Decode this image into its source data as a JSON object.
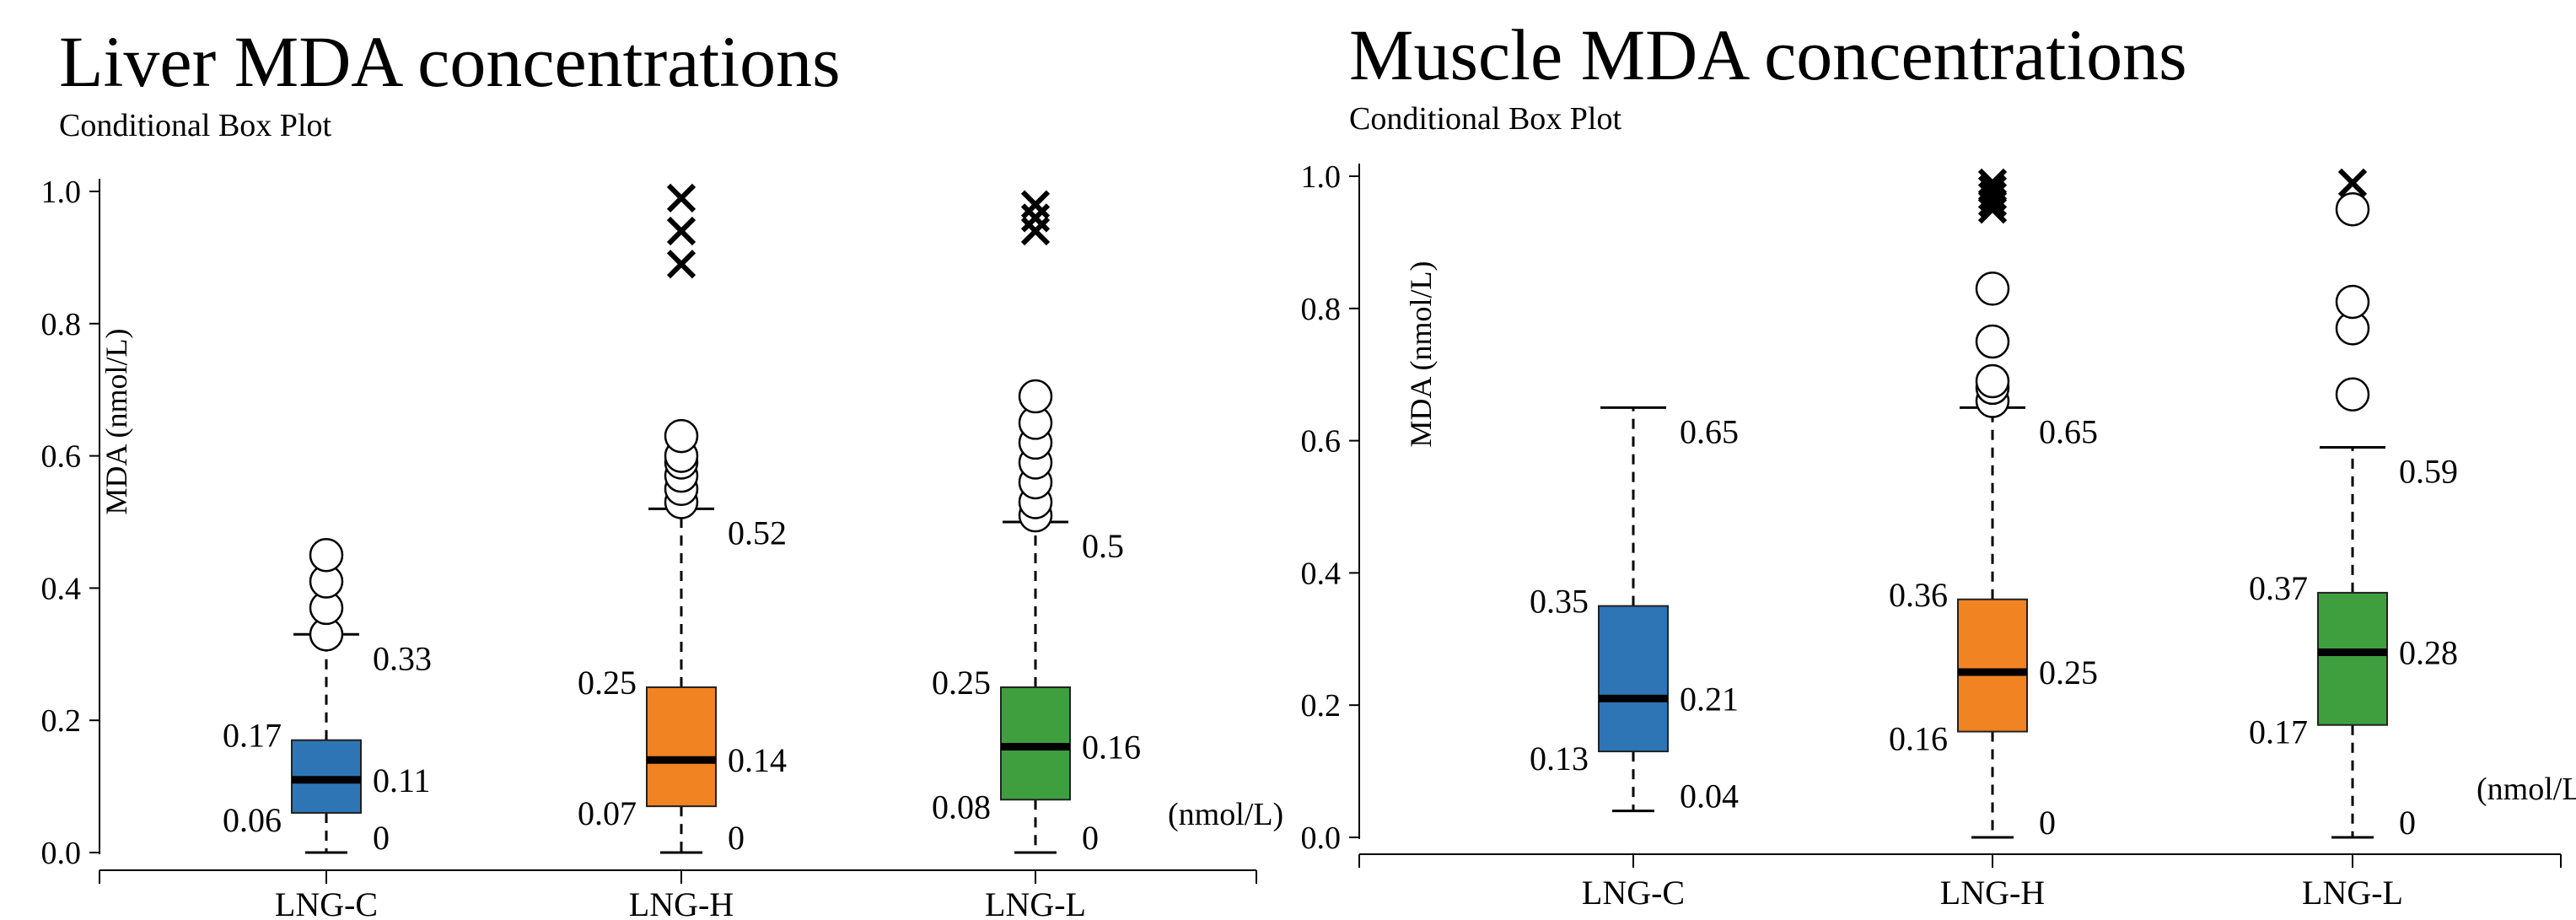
{
  "chart_data": [
    {
      "type": "boxplot",
      "title": "Liver MDA concentrations",
      "subtitle": "Conditional Box Plot",
      "ylabel": "MDA (nmol/L)",
      "unit_label": "(nmol/L)",
      "ylim": [
        0,
        1.0
      ],
      "yticks": [
        "0.0",
        "0.2",
        "0.4",
        "0.6",
        "0.8",
        "1.0"
      ],
      "categories": [
        "LNG-C",
        "LNG-H",
        "LNG-L"
      ],
      "boxes": [
        {
          "name": "LNG-C",
          "color": "#2e75b6",
          "whisker_low": 0,
          "q1": 0.06,
          "median": 0.11,
          "q3": 0.17,
          "whisker_high": 0.33,
          "labels": {
            "whisker_low": "0",
            "q1": "0.06",
            "median": "0.11",
            "q3": "0.17",
            "whisker_high": "0.33"
          },
          "outliers": [
            0.33,
            0.37,
            0.41,
            0.45
          ],
          "extremes": []
        },
        {
          "name": "LNG-H",
          "color": "#f28322",
          "whisker_low": 0,
          "q1": 0.07,
          "median": 0.14,
          "q3": 0.25,
          "whisker_high": 0.52,
          "labels": {
            "whisker_low": "0",
            "q1": "0.07",
            "median": "0.14",
            "q3": "0.25",
            "whisker_high": "0.52"
          },
          "outliers": [
            0.53,
            0.55,
            0.57,
            0.59,
            0.6,
            0.63
          ],
          "extremes": [
            0.89,
            0.94,
            0.99
          ]
        },
        {
          "name": "LNG-L",
          "color": "#3f9f3f",
          "whisker_low": 0,
          "q1": 0.08,
          "median": 0.16,
          "q3": 0.25,
          "whisker_high": 0.5,
          "labels": {
            "whisker_low": "0",
            "q1": "0.08",
            "median": "0.16",
            "q3": "0.25",
            "whisker_high": "0.5"
          },
          "outliers": [
            0.51,
            0.53,
            0.56,
            0.59,
            0.62,
            0.65,
            0.69
          ],
          "extremes": [
            0.94,
            0.96,
            0.98
          ]
        }
      ]
    },
    {
      "type": "boxplot",
      "title": "Muscle MDA concentrations",
      "subtitle": "Conditional Box Plot",
      "ylabel": "MDA (nmol/L)",
      "unit_label": "(nmol/L)",
      "ylim": [
        0,
        1.0
      ],
      "yticks": [
        "0.0",
        "0.2",
        "0.4",
        "0.6",
        "0.8",
        "1.0"
      ],
      "categories": [
        "LNG-C",
        "LNG-H",
        "LNG-L"
      ],
      "boxes": [
        {
          "name": "LNG-C",
          "color": "#2e75b6",
          "whisker_low": 0.04,
          "q1": 0.13,
          "median": 0.21,
          "q3": 0.35,
          "whisker_high": 0.65,
          "labels": {
            "whisker_low": "0.04",
            "q1": "0.13",
            "median": "0.21",
            "q3": "0.35",
            "whisker_high": "0.65"
          },
          "outliers": [],
          "extremes": []
        },
        {
          "name": "LNG-H",
          "color": "#f28322",
          "whisker_low": 0,
          "q1": 0.16,
          "median": 0.25,
          "q3": 0.36,
          "whisker_high": 0.65,
          "labels": {
            "whisker_low": "0",
            "q1": "0.16",
            "median": "0.25",
            "q3": "0.36",
            "whisker_high": "0.65"
          },
          "outliers": [
            0.66,
            0.68,
            0.69,
            0.75,
            0.83
          ],
          "extremes": [
            0.95,
            0.96,
            0.97,
            0.98,
            0.99
          ]
        },
        {
          "name": "LNG-L",
          "color": "#3f9f3f",
          "whisker_low": 0,
          "q1": 0.17,
          "median": 0.28,
          "q3": 0.37,
          "whisker_high": 0.59,
          "labels": {
            "whisker_low": "0",
            "q1": "0.17",
            "median": "0.28",
            "q3": "0.37",
            "whisker_high": "0.59"
          },
          "outliers": [
            0.67,
            0.77,
            0.81,
            0.95
          ],
          "extremes": [
            0.99
          ]
        }
      ]
    }
  ]
}
